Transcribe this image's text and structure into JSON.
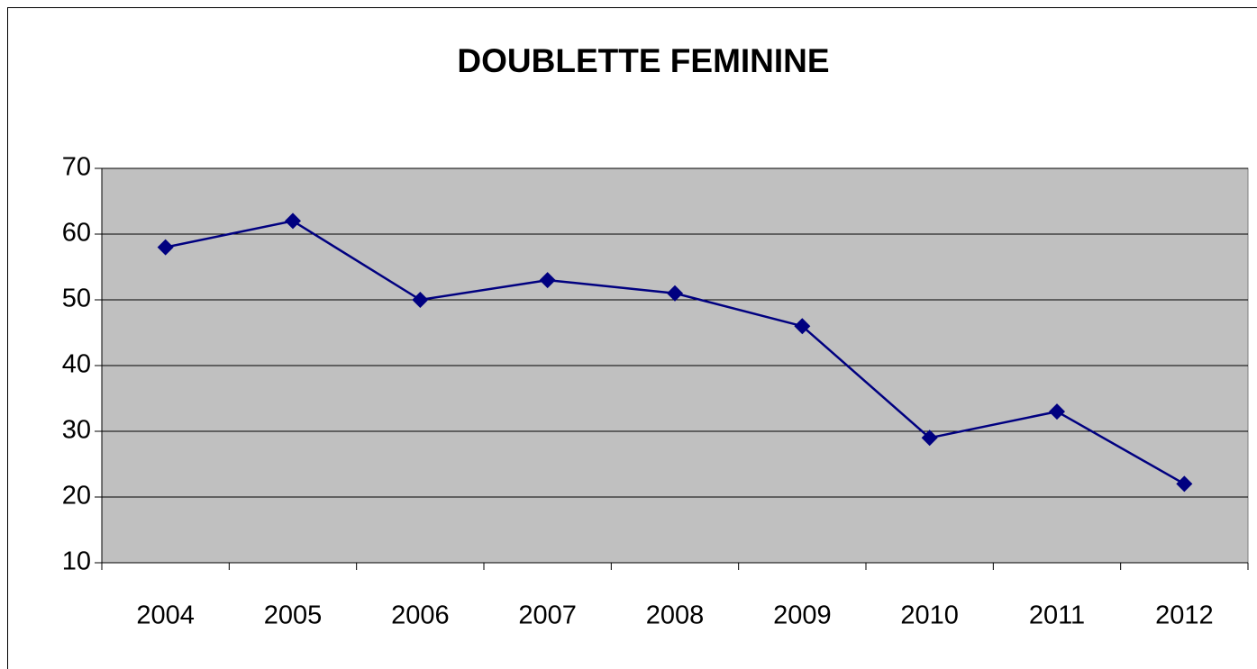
{
  "chart_data": {
    "type": "line",
    "title": "DOUBLETTE FEMININE",
    "categories": [
      "2004",
      "2005",
      "2006",
      "2007",
      "2008",
      "2009",
      "2010",
      "2011",
      "2012"
    ],
    "values": [
      58,
      62,
      50,
      53,
      51,
      46,
      29,
      33,
      22
    ],
    "color": "#000080",
    "ylim": [
      10,
      70
    ],
    "yticks": [
      10,
      20,
      30,
      40,
      50,
      60,
      70
    ],
    "grid": true
  }
}
